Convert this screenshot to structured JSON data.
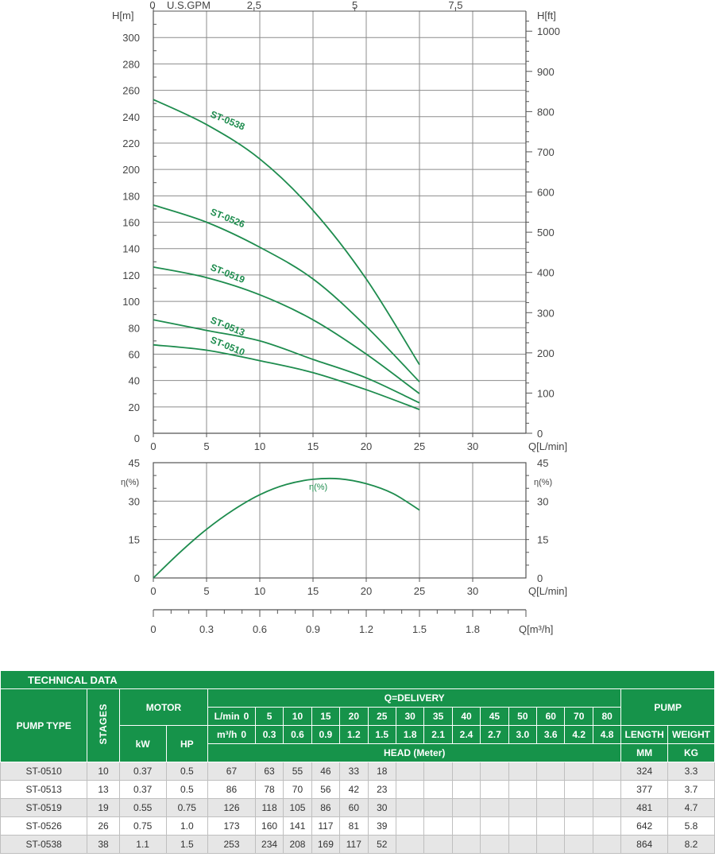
{
  "chart_data": [
    {
      "type": "line",
      "title": "",
      "ylabel_left": "H[m]",
      "ylabel_right": "H[ft]",
      "xlabel": "Q[L/min]",
      "top_axis": {
        "label": "U.S.GPM",
        "ticks": [
          "0",
          "2.5",
          "5",
          "7.5"
        ],
        "values": [
          0,
          2.5,
          5,
          7.5
        ]
      },
      "x_ticks": [
        0,
        5,
        10,
        15,
        20,
        25,
        30
      ],
      "y_ticks": [
        0,
        20,
        40,
        60,
        80,
        100,
        120,
        140,
        160,
        180,
        200,
        220,
        240,
        260,
        280,
        300
      ],
      "y_right_ticks": [
        0,
        100,
        200,
        300,
        400,
        500,
        600,
        700,
        800,
        900,
        1000
      ],
      "xlim": [
        0,
        35
      ],
      "ylim": [
        0,
        320
      ],
      "grid": true,
      "x": [
        0,
        5,
        10,
        15,
        20,
        25
      ],
      "series": [
        {
          "name": "ST-0538",
          "values": [
            253,
            234,
            208,
            169,
            117,
            52
          ]
        },
        {
          "name": "ST-0526",
          "values": [
            173,
            160,
            141,
            117,
            81,
            39
          ]
        },
        {
          "name": "ST-0519",
          "values": [
            126,
            118,
            105,
            86,
            60,
            30
          ]
        },
        {
          "name": "ST-0513",
          "values": [
            86,
            78,
            70,
            56,
            42,
            23
          ]
        },
        {
          "name": "ST-0510",
          "values": [
            67,
            63,
            55,
            46,
            33,
            18
          ]
        }
      ]
    },
    {
      "type": "line",
      "title": "",
      "ylabel_left": "η(%)",
      "ylabel_right": "η(%)",
      "xlabel": "Q[L/min]",
      "x_ticks": [
        0,
        5,
        10,
        15,
        20,
        25,
        30
      ],
      "y_ticks": [
        0,
        15,
        30,
        45
      ],
      "xlim": [
        0,
        35
      ],
      "ylim": [
        0,
        45
      ],
      "grid": true,
      "series": [
        {
          "name": "η(%)",
          "x": [
            0,
            2.5,
            5,
            7.5,
            10,
            12.5,
            15,
            17.5,
            20,
            22.5,
            25
          ],
          "values": [
            0,
            10,
            19,
            26.5,
            32.5,
            36.5,
            38.5,
            38.7,
            36.8,
            33,
            26.5
          ]
        }
      ]
    },
    {
      "type": "axis",
      "xlabel": "Q[m³/h]",
      "ticks": [
        "0",
        "0.3",
        "0.6",
        "0.9",
        "1.2",
        "1.5",
        "1.8"
      ]
    }
  ],
  "colors": {
    "curve": "#1e8c4e",
    "grid": "#8c8c8c",
    "header": "#16934a",
    "row_alt": "#e6e6e6"
  },
  "table": {
    "title": "TECHNICAL DATA",
    "pump_type": "PUMP TYPE",
    "stages": "STAGES",
    "motor": "MOTOR",
    "kw": "kW",
    "hp": "HP",
    "delivery": "Q=DELIVERY",
    "lmin_label": "L/min",
    "m3h_label": "m³/h",
    "lmin": [
      "0",
      "5",
      "10",
      "15",
      "20",
      "25",
      "30",
      "35",
      "40",
      "45",
      "50",
      "60",
      "70",
      "80"
    ],
    "m3h": [
      "0",
      "0.3",
      "0.6",
      "0.9",
      "1.2",
      "1.5",
      "1.8",
      "2.1",
      "2.4",
      "2.7",
      "3.0",
      "3.6",
      "4.2",
      "4.8"
    ],
    "head": "HEAD (Meter)",
    "pump": "PUMP",
    "length": "LENGTH",
    "weight": "WEIGHT",
    "mm": "MM",
    "kg": "KG",
    "rows": [
      {
        "type": "ST-0510",
        "stages": "10",
        "kw": "0.37",
        "hp": "0.5",
        "heads": [
          "67",
          "63",
          "55",
          "46",
          "33",
          "18"
        ],
        "length": "324",
        "weight": "3.3"
      },
      {
        "type": "ST-0513",
        "stages": "13",
        "kw": "0.37",
        "hp": "0.5",
        "heads": [
          "86",
          "78",
          "70",
          "56",
          "42",
          "23"
        ],
        "length": "377",
        "weight": "3.7"
      },
      {
        "type": "ST-0519",
        "stages": "19",
        "kw": "0.55",
        "hp": "0.75",
        "heads": [
          "126",
          "118",
          "105",
          "86",
          "60",
          "30"
        ],
        "length": "481",
        "weight": "4.7"
      },
      {
        "type": "ST-0526",
        "stages": "26",
        "kw": "0.75",
        "hp": "1.0",
        "heads": [
          "173",
          "160",
          "141",
          "117",
          "81",
          "39"
        ],
        "length": "642",
        "weight": "5.8"
      },
      {
        "type": "ST-0538",
        "stages": "38",
        "kw": "1.1",
        "hp": "1.5",
        "heads": [
          "253",
          "234",
          "208",
          "169",
          "117",
          "52"
        ],
        "length": "864",
        "weight": "8.2"
      }
    ]
  }
}
